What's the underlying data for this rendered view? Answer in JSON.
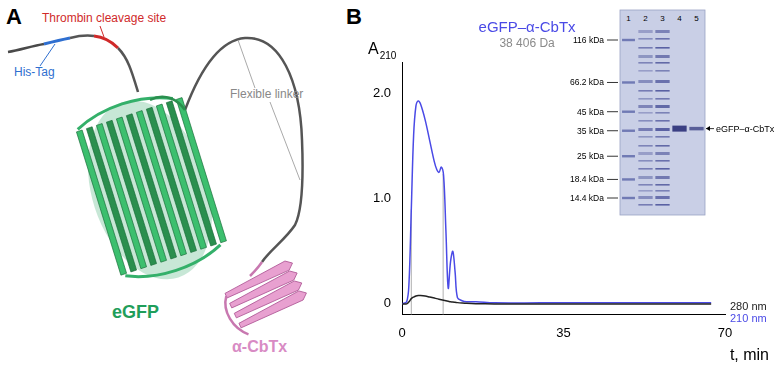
{
  "panel_a": {
    "letter": "A",
    "labels": {
      "thrombin": "Thrombin cleavage site",
      "his_tag": "His-Tag",
      "linker": "Flexible linker",
      "egfp": "eGFP",
      "cbtx": "α-CbTx"
    }
  },
  "chart_data": {
    "panel_letter": "B",
    "type": "line",
    "title": "eGFP–α-CbTx",
    "subtitle": "38 406 Da",
    "y_label": {
      "text": "A",
      "subscript": "210"
    },
    "x_label": "t, min",
    "xlim": [
      0,
      70
    ],
    "xticks": [
      0,
      35,
      70
    ],
    "ylim": [
      -0.1,
      2.3
    ],
    "yticks": [
      0,
      {
        "value": 1,
        "label": "1.0"
      },
      {
        "value": 2,
        "label": "2.0"
      }
    ],
    "grid": false,
    "fraction_bounds": [
      2,
      8.9
    ],
    "x": [
      0,
      1,
      1.5,
      2,
      2.5,
      3,
      3.5,
      4,
      5,
      6,
      7,
      7.5,
      8,
      8.5,
      9,
      9.5,
      10,
      10.5,
      11,
      11.5,
      12,
      13,
      14,
      16,
      20,
      30,
      40,
      50,
      60,
      67
    ],
    "series": [
      {
        "name": "280 nm",
        "color": "#222222",
        "values": [
          0,
          0,
          0.02,
          0.05,
          0.065,
          0.075,
          0.08,
          0.08,
          0.075,
          0.065,
          0.055,
          0.05,
          0.045,
          0.04,
          0.035,
          0.03,
          0.025,
          0.02,
          0.018,
          0.015,
          0.012,
          0.008,
          0.005,
          0.002,
          0,
          0,
          0,
          0,
          0,
          0
        ]
      },
      {
        "name": "210 nm",
        "color": "#4a4ae6",
        "values": [
          0,
          0.02,
          0.2,
          0.9,
          1.6,
          1.88,
          1.93,
          1.9,
          1.75,
          1.55,
          1.35,
          1.28,
          1.25,
          1.3,
          1.22,
          0.7,
          0.15,
          0.4,
          0.5,
          0.3,
          0.06,
          0.03,
          0.02,
          0.02,
          0.01,
          0.01,
          0.01,
          0.01,
          0.01,
          0.01
        ]
      }
    ]
  },
  "gel": {
    "lanes": [
      "1",
      "2",
      "3",
      "4",
      "5"
    ],
    "markers": [
      {
        "kda": 116,
        "label": "116 kDa"
      },
      {
        "kda": 66.2,
        "label": "66.2 kDa"
      },
      {
        "kda": 45,
        "label": "45 kDa"
      },
      {
        "kda": 35,
        "label": "35 kDa"
      },
      {
        "kda": 25,
        "label": "25 kDa"
      },
      {
        "kda": 18.4,
        "label": "18.4 kDa"
      },
      {
        "kda": 14.4,
        "label": "14.4 kDa"
      }
    ],
    "band": {
      "label": "eGFP–α-CbTx",
      "kda": 36,
      "lanes": [
        "4",
        "5"
      ]
    }
  }
}
